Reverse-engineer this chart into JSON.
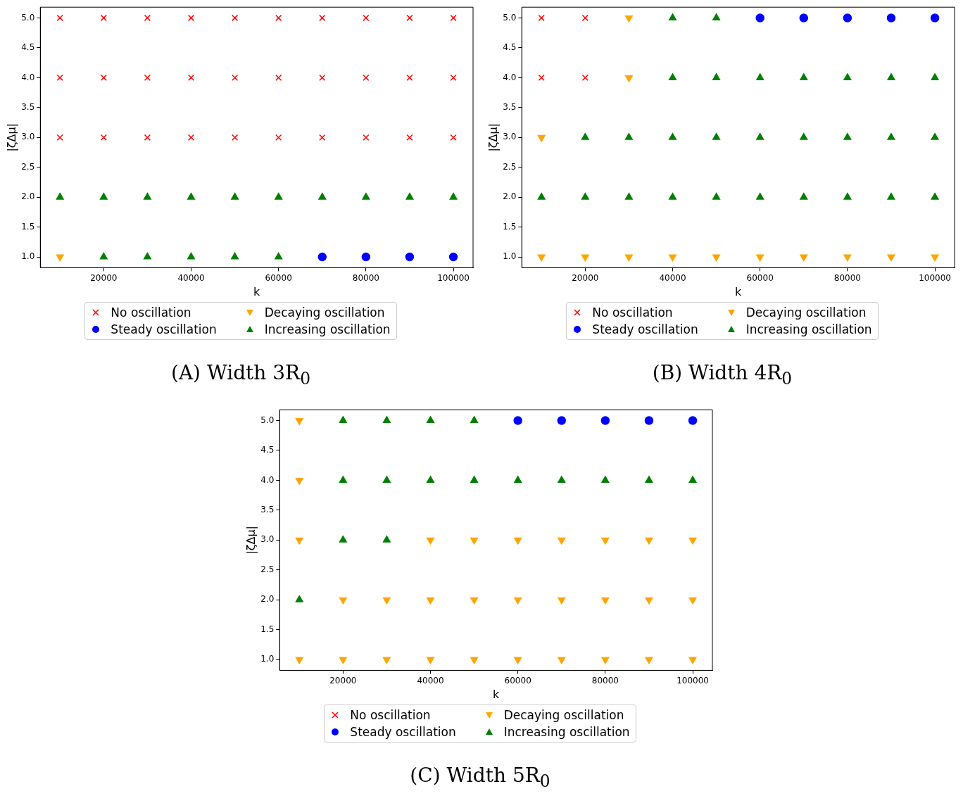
{
  "chart_data": [
    {
      "type": "scatter",
      "title": "(A) Width 3R$_{0}$",
      "xlabel": "k",
      "ylabel": "|ζΔμ|",
      "xlim": [
        5500,
        104500
      ],
      "ylim": [
        0.82,
        5.18
      ],
      "xticks": [
        20000,
        40000,
        60000,
        80000,
        100000
      ],
      "yticks": [
        {
          "value": 1,
          "label": "1.0"
        },
        {
          "value": 1.5,
          "label": "1.5"
        },
        {
          "value": 2,
          "label": "2.0"
        },
        {
          "value": 2.5,
          "label": "2.5"
        },
        {
          "value": 3,
          "label": "3.0"
        },
        {
          "value": 3.5,
          "label": "3.5"
        },
        {
          "value": 4,
          "label": "4.0"
        },
        {
          "value": 4.5,
          "label": "4.5"
        },
        {
          "value": 5,
          "label": "5.0"
        }
      ],
      "legend": "bottom",
      "series": [
        {
          "name": "No oscillation",
          "color": "#ff0000",
          "marker": "cross",
          "x": [
            10000,
            20000,
            30000,
            40000,
            50000,
            60000,
            70000,
            80000,
            90000,
            100000,
            10000,
            20000,
            30000,
            40000,
            50000,
            60000,
            70000,
            80000,
            90000,
            100000,
            10000,
            20000,
            30000,
            40000,
            50000,
            60000,
            70000,
            80000,
            90000,
            100000
          ],
          "values": [
            5,
            5,
            5,
            5,
            5,
            5,
            5,
            5,
            5,
            5,
            4,
            4,
            4,
            4,
            4,
            4,
            4,
            4,
            4,
            4,
            3,
            3,
            3,
            3,
            3,
            3,
            3,
            3,
            3,
            3
          ]
        },
        {
          "name": "Decaying oscillation",
          "color": "#ffa500",
          "marker": "triangle-down",
          "x": [
            10000
          ],
          "values": [
            1
          ]
        },
        {
          "name": "Steady oscillation",
          "color": "#0000ff",
          "marker": "circle",
          "x": [
            70000,
            80000,
            90000,
            100000
          ],
          "values": [
            1,
            1,
            1,
            1
          ]
        },
        {
          "name": "Increasing oscillation",
          "color": "#008000",
          "marker": "triangle",
          "x": [
            10000,
            20000,
            30000,
            40000,
            50000,
            60000,
            70000,
            80000,
            90000,
            100000,
            20000,
            30000,
            40000,
            50000,
            60000
          ],
          "values": [
            2,
            2,
            2,
            2,
            2,
            2,
            2,
            2,
            2,
            2,
            1,
            1,
            1,
            1,
            1
          ]
        }
      ]
    },
    {
      "type": "scatter",
      "title": "(B) Width 4R$_{0}$",
      "xlabel": "k",
      "ylabel": "|ζΔμ|",
      "xlim": [
        5500,
        104500
      ],
      "ylim": [
        0.82,
        5.18
      ],
      "xticks": [
        20000,
        40000,
        60000,
        80000,
        100000
      ],
      "yticks": [
        {
          "value": 1,
          "label": "1.0"
        },
        {
          "value": 1.5,
          "label": "1.5"
        },
        {
          "value": 2,
          "label": "2.0"
        },
        {
          "value": 2.5,
          "label": "2.5"
        },
        {
          "value": 3,
          "label": "3.0"
        },
        {
          "value": 3.5,
          "label": "3.5"
        },
        {
          "value": 4,
          "label": "4.0"
        },
        {
          "value": 4.5,
          "label": "4.5"
        },
        {
          "value": 5,
          "label": "5.0"
        }
      ],
      "legend": "bottom",
      "series": [
        {
          "name": "No oscillation",
          "color": "#ff0000",
          "marker": "cross",
          "x": [
            10000,
            20000,
            10000,
            20000
          ],
          "values": [
            5,
            5,
            4,
            4
          ]
        },
        {
          "name": "Decaying oscillation",
          "color": "#ffa500",
          "marker": "triangle-down",
          "x": [
            30000,
            30000,
            10000,
            10000,
            20000,
            30000,
            40000,
            50000,
            60000,
            70000,
            80000,
            90000,
            100000
          ],
          "values": [
            5,
            4,
            3,
            1,
            1,
            1,
            1,
            1,
            1,
            1,
            1,
            1,
            1
          ]
        },
        {
          "name": "Steady oscillation",
          "color": "#0000ff",
          "marker": "circle",
          "x": [
            60000,
            70000,
            80000,
            90000,
            100000
          ],
          "values": [
            5,
            5,
            5,
            5,
            5
          ]
        },
        {
          "name": "Increasing oscillation",
          "color": "#008000",
          "marker": "triangle",
          "x": [
            40000,
            50000,
            40000,
            50000,
            60000,
            70000,
            80000,
            90000,
            100000,
            20000,
            30000,
            40000,
            50000,
            60000,
            70000,
            80000,
            90000,
            100000,
            10000,
            20000,
            30000,
            40000,
            50000,
            60000,
            70000,
            80000,
            90000,
            100000
          ],
          "values": [
            5,
            5,
            4,
            4,
            4,
            4,
            4,
            4,
            4,
            3,
            3,
            3,
            3,
            3,
            3,
            3,
            3,
            3,
            2,
            2,
            2,
            2,
            2,
            2,
            2,
            2,
            2,
            2
          ]
        }
      ]
    },
    {
      "type": "scatter",
      "title": "(C) Width 5R$_{0}$",
      "xlabel": "k",
      "ylabel": "|ζΔμ|",
      "xlim": [
        5500,
        104500
      ],
      "ylim": [
        0.82,
        5.18
      ],
      "xticks": [
        20000,
        40000,
        60000,
        80000,
        100000
      ],
      "yticks": [
        {
          "value": 1,
          "label": "1.0"
        },
        {
          "value": 1.5,
          "label": "1.5"
        },
        {
          "value": 2,
          "label": "2.0"
        },
        {
          "value": 2.5,
          "label": "2.5"
        },
        {
          "value": 3,
          "label": "3.0"
        },
        {
          "value": 3.5,
          "label": "3.5"
        },
        {
          "value": 4,
          "label": "4.0"
        },
        {
          "value": 4.5,
          "label": "4.5"
        },
        {
          "value": 5,
          "label": "5.0"
        }
      ],
      "legend": "bottom",
      "series": [
        {
          "name": "No oscillation",
          "color": "#ff0000",
          "marker": "cross"
        },
        {
          "name": "Decaying oscillation",
          "color": "#ffa500",
          "marker": "triangle-down",
          "x": [
            10000,
            10000,
            10000,
            40000,
            50000,
            60000,
            70000,
            80000,
            90000,
            100000,
            20000,
            30000,
            40000,
            50000,
            60000,
            70000,
            80000,
            90000,
            100000,
            10000,
            20000,
            30000,
            40000,
            50000,
            60000,
            70000,
            80000,
            90000,
            100000
          ],
          "values": [
            5,
            4,
            3,
            3,
            3,
            3,
            3,
            3,
            3,
            3,
            2,
            2,
            2,
            2,
            2,
            2,
            2,
            2,
            2,
            1,
            1,
            1,
            1,
            1,
            1,
            1,
            1,
            1,
            1
          ]
        },
        {
          "name": "Steady oscillation",
          "color": "#0000ff",
          "marker": "circle",
          "x": [
            60000,
            70000,
            80000,
            90000,
            100000
          ],
          "values": [
            5,
            5,
            5,
            5,
            5
          ]
        },
        {
          "name": "Increasing oscillation",
          "color": "#008000",
          "marker": "triangle",
          "x": [
            20000,
            30000,
            40000,
            50000,
            20000,
            30000,
            40000,
            50000,
            60000,
            70000,
            80000,
            90000,
            100000,
            20000,
            30000,
            10000
          ],
          "values": [
            5,
            5,
            5,
            5,
            4,
            4,
            4,
            4,
            4,
            4,
            4,
            4,
            4,
            3,
            3,
            2
          ]
        }
      ]
    }
  ]
}
